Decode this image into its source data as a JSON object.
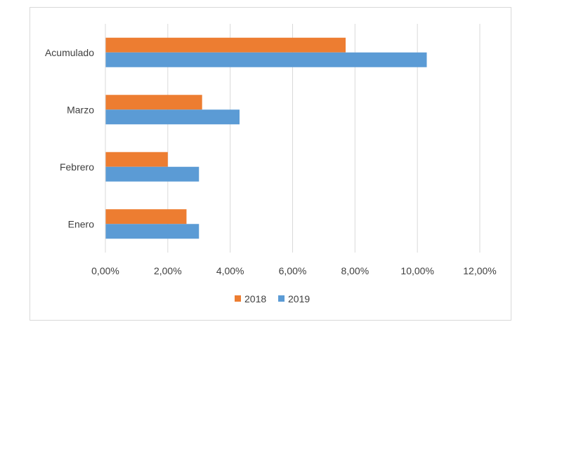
{
  "chart_data": {
    "type": "bar",
    "orientation": "horizontal",
    "title": "",
    "xlabel": "",
    "ylabel": "",
    "categories": [
      "Enero",
      "Febrero",
      "Marzo",
      "Acumulado"
    ],
    "series": [
      {
        "name": "2018",
        "color": "#ED7D31",
        "values": [
          0.026,
          0.02,
          0.031,
          0.077
        ]
      },
      {
        "name": "2019",
        "color": "#5B9BD5",
        "values": [
          0.03,
          0.03,
          0.043,
          0.103
        ]
      }
    ],
    "xlim": [
      0,
      0.12
    ],
    "ticks": [
      "0,00%",
      "2,00%",
      "4,00%",
      "6,00%",
      "8,00%",
      "10,00%",
      "12,00%"
    ],
    "grid": true,
    "legend_position": "bottom"
  }
}
